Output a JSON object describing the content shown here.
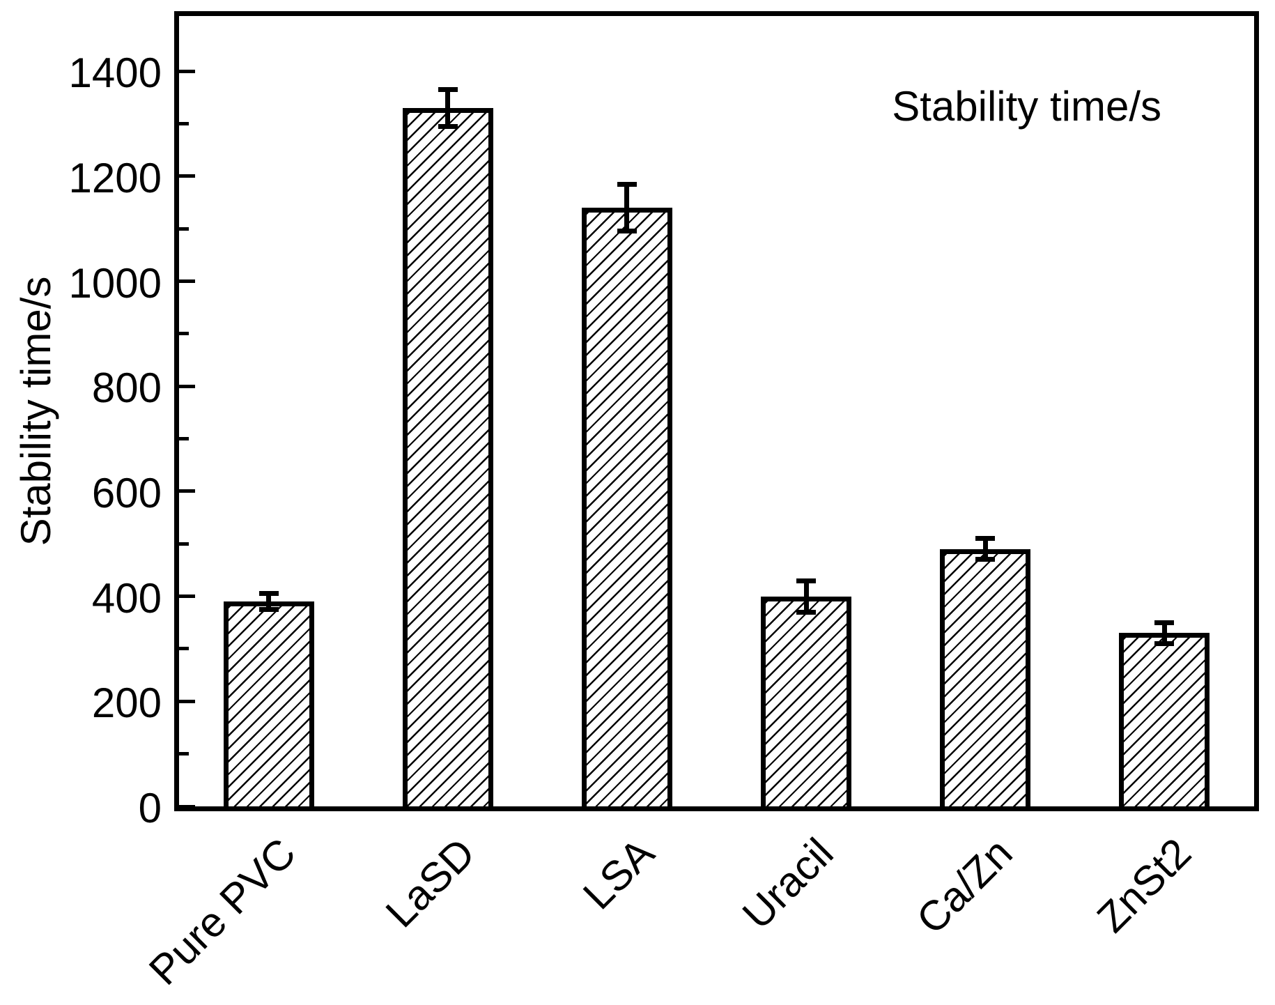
{
  "chart_data": {
    "type": "bar",
    "categories": [
      "Pure PVC",
      "LaSD",
      "LSA",
      "Uracil",
      "Ca/Zn",
      "ZnSt2"
    ],
    "values": [
      390,
      1330,
      1140,
      400,
      490,
      330
    ],
    "error_bars": [
      15,
      35,
      45,
      30,
      20,
      20
    ],
    "annotation": "Stability time/s",
    "ylabel": "Stability time/s",
    "xlabel": "",
    "title": "",
    "ylim": [
      0,
      1505
    ],
    "yticks_major": [
      0,
      200,
      400,
      600,
      800,
      1000,
      1200,
      1400
    ],
    "yticks_minor": [
      100,
      300,
      500,
      700,
      900,
      1100,
      1300
    ],
    "legend_position": "none",
    "grid": false,
    "bar_style": "diagonal-hatch",
    "colors": {
      "ink": "#000000",
      "background": "#ffffff"
    }
  }
}
